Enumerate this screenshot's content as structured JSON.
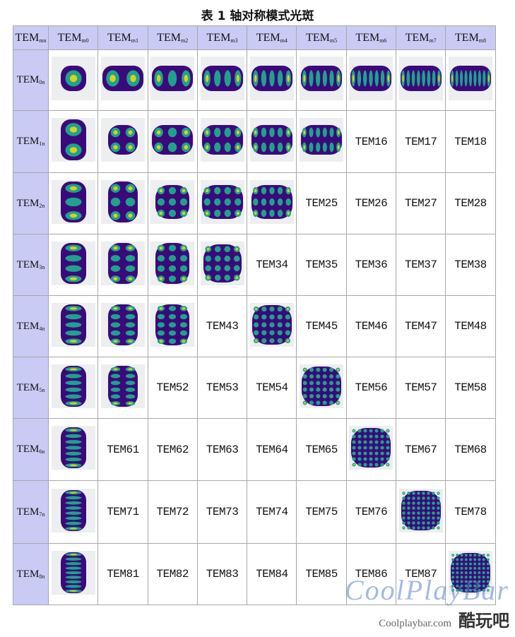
{
  "title": "表 1 轴对称模式光斑",
  "colors": {
    "header_bg": "#c9cbf5",
    "grid_line": "#a8a8a8",
    "spot_bg": "#eceef0",
    "spot_outer": "#3b0a7a",
    "spot_mid": "#1fa28c",
    "spot_core": "#d9d21a"
  },
  "table": {
    "corner": {
      "base": "TEM",
      "sub": "mn"
    },
    "column_headers": [
      {
        "base": "TEM",
        "sub": "m0"
      },
      {
        "base": "TEM",
        "sub": "m1"
      },
      {
        "base": "TEM",
        "sub": "m2"
      },
      {
        "base": "TEM",
        "sub": "m3"
      },
      {
        "base": "TEM",
        "sub": "m4"
      },
      {
        "base": "TEM",
        "sub": "m5"
      },
      {
        "base": "TEM",
        "sub": "m6"
      },
      {
        "base": "TEM",
        "sub": "m7"
      },
      {
        "base": "TEM",
        "sub": "m8"
      }
    ],
    "rows": [
      {
        "header": {
          "base": "TEM",
          "sub": "0n"
        },
        "cells": [
          {
            "type": "image",
            "label": "TEM00 spot"
          },
          {
            "type": "image",
            "label": "TEM01 spot"
          },
          {
            "type": "image",
            "label": "TEM02 spot"
          },
          {
            "type": "image",
            "label": "TEM03 spot"
          },
          {
            "type": "image",
            "label": "TEM04 spot"
          },
          {
            "type": "image",
            "label": "TEM05 spot"
          },
          {
            "type": "image",
            "label": "TEM06 spot"
          },
          {
            "type": "image",
            "label": "TEM07 spot"
          },
          {
            "type": "image",
            "label": "TEM08 spot"
          }
        ]
      },
      {
        "header": {
          "base": "TEM",
          "sub": "1n"
        },
        "cells": [
          {
            "type": "image",
            "label": "TEM10 spot"
          },
          {
            "type": "image",
            "label": "TEM11 spot"
          },
          {
            "type": "image",
            "label": "TEM12 spot"
          },
          {
            "type": "image",
            "label": "TEM13 spot"
          },
          {
            "type": "image",
            "label": "TEM14 spot"
          },
          {
            "type": "image",
            "label": "TEM15 spot"
          },
          {
            "type": "text",
            "text": "TEM16"
          },
          {
            "type": "text",
            "text": "TEM17"
          },
          {
            "type": "text",
            "text": "TEM18"
          }
        ]
      },
      {
        "header": {
          "base": "TEM",
          "sub": "2n"
        },
        "cells": [
          {
            "type": "image",
            "label": "TEM20 spot"
          },
          {
            "type": "image",
            "label": "TEM21 spot"
          },
          {
            "type": "image",
            "label": "TEM22 spot"
          },
          {
            "type": "image",
            "label": "TEM23 spot"
          },
          {
            "type": "image",
            "label": "TEM24 spot"
          },
          {
            "type": "text",
            "text": "TEM25"
          },
          {
            "type": "text",
            "text": "TEM26"
          },
          {
            "type": "text",
            "text": "TEM27"
          },
          {
            "type": "text",
            "text": "TEM28"
          }
        ]
      },
      {
        "header": {
          "base": "TEM",
          "sub": "3n"
        },
        "cells": [
          {
            "type": "image",
            "label": "TEM30 spot"
          },
          {
            "type": "image",
            "label": "TEM31 spot"
          },
          {
            "type": "image",
            "label": "TEM32 spot"
          },
          {
            "type": "image",
            "label": "TEM33 spot"
          },
          {
            "type": "text",
            "text": "TEM34"
          },
          {
            "type": "text",
            "text": "TEM35"
          },
          {
            "type": "text",
            "text": "TEM36"
          },
          {
            "type": "text",
            "text": "TEM37"
          },
          {
            "type": "text",
            "text": "TEM38"
          }
        ]
      },
      {
        "header": {
          "base": "TEM",
          "sub": "4n"
        },
        "cells": [
          {
            "type": "image",
            "label": "TEM40 spot"
          },
          {
            "type": "image",
            "label": "TEM41 spot"
          },
          {
            "type": "image",
            "label": "TEM42 spot"
          },
          {
            "type": "text",
            "text": "TEM43"
          },
          {
            "type": "image",
            "label": "TEM44 spot"
          },
          {
            "type": "text",
            "text": "TEM45"
          },
          {
            "type": "text",
            "text": "TEM46"
          },
          {
            "type": "text",
            "text": "TEM47"
          },
          {
            "type": "text",
            "text": "TEM48"
          }
        ]
      },
      {
        "header": {
          "base": "TEM",
          "sub": "5n"
        },
        "cells": [
          {
            "type": "image",
            "label": "TEM50 spot"
          },
          {
            "type": "image",
            "label": "TEM51 spot"
          },
          {
            "type": "text",
            "text": "TEM52"
          },
          {
            "type": "text",
            "text": "TEM53"
          },
          {
            "type": "text",
            "text": "TEM54"
          },
          {
            "type": "image",
            "label": "TEM55 spot"
          },
          {
            "type": "text",
            "text": "TEM56"
          },
          {
            "type": "text",
            "text": "TEM57"
          },
          {
            "type": "text",
            "text": "TEM58"
          }
        ]
      },
      {
        "header": {
          "base": "TEM",
          "sub": "6n"
        },
        "cells": [
          {
            "type": "image",
            "label": "TEM60 spot"
          },
          {
            "type": "text",
            "text": "TEM61"
          },
          {
            "type": "text",
            "text": "TEM62"
          },
          {
            "type": "text",
            "text": "TEM63"
          },
          {
            "type": "text",
            "text": "TEM64"
          },
          {
            "type": "text",
            "text": "TEM65"
          },
          {
            "type": "image",
            "label": "TEM66 spot"
          },
          {
            "type": "text",
            "text": "TEM67"
          },
          {
            "type": "text",
            "text": "TEM68"
          }
        ]
      },
      {
        "header": {
          "base": "TEM",
          "sub": "7n"
        },
        "cells": [
          {
            "type": "image",
            "label": "TEM70 spot"
          },
          {
            "type": "text",
            "text": "TEM71"
          },
          {
            "type": "text",
            "text": "TEM72"
          },
          {
            "type": "text",
            "text": "TEM73"
          },
          {
            "type": "text",
            "text": "TEM74"
          },
          {
            "type": "text",
            "text": "TEM75"
          },
          {
            "type": "text",
            "text": "TEM76"
          },
          {
            "type": "image",
            "label": "TEM77 spot"
          },
          {
            "type": "text",
            "text": "TEM78"
          }
        ]
      },
      {
        "header": {
          "base": "TEM",
          "sub": "8n"
        },
        "cells": [
          {
            "type": "image",
            "label": "TEM80 spot"
          },
          {
            "type": "text",
            "text": "TEM81"
          },
          {
            "type": "text",
            "text": "TEM82"
          },
          {
            "type": "text",
            "text": "TEM83"
          },
          {
            "type": "text",
            "text": "TEM84"
          },
          {
            "type": "text",
            "text": "TEM85"
          },
          {
            "type": "text",
            "text": "TEM86"
          },
          {
            "type": "text",
            "text": "TEM87"
          },
          {
            "type": "image",
            "label": "TEM88 spot"
          }
        ]
      }
    ]
  },
  "watermark": {
    "script": "CoolPlayBar",
    "site": "Coolplaybar.com",
    "cn": "酷玩吧"
  }
}
